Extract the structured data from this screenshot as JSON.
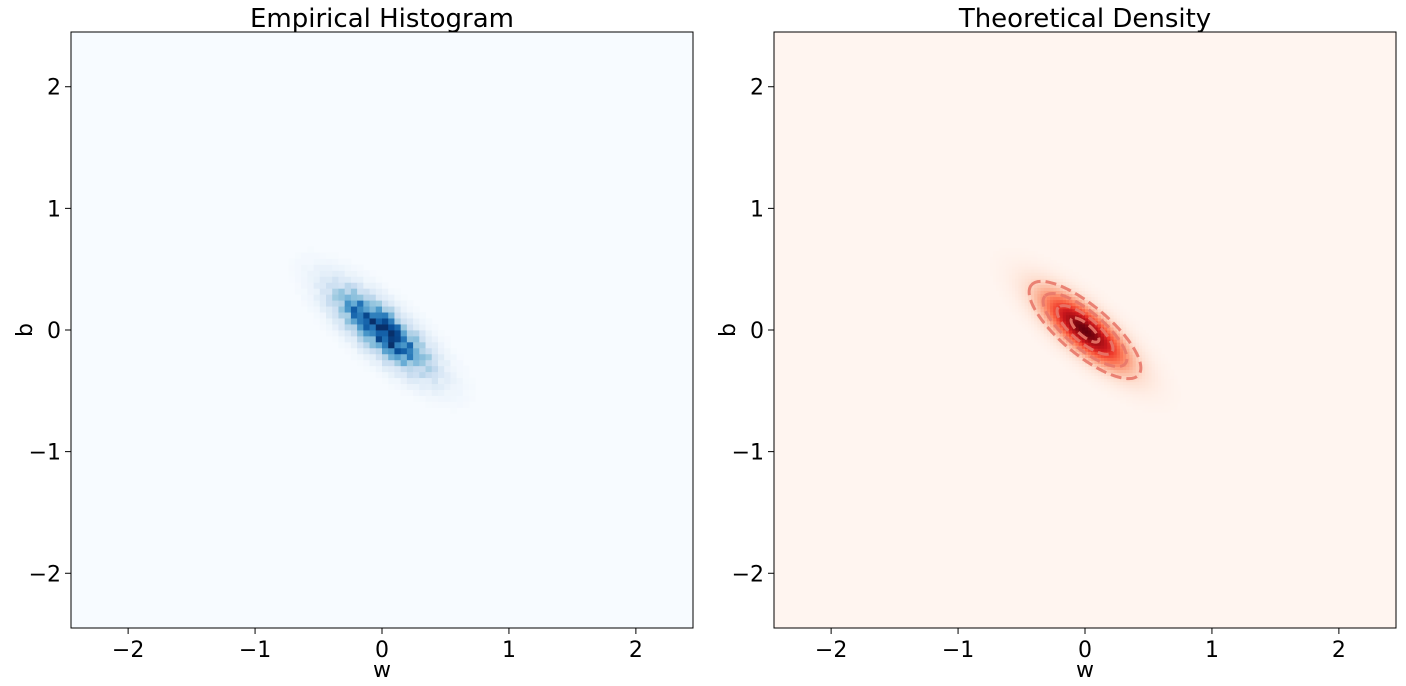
{
  "chart_data": [
    {
      "type": "heatmap",
      "title": "Empirical Histogram",
      "xlabel": "w",
      "ylabel": "b",
      "xlim": [
        -2.45,
        2.45
      ],
      "ylim": [
        -2.45,
        2.45
      ],
      "xticks": [
        -2,
        -1,
        0,
        1,
        2
      ],
      "yticks": [
        -2,
        -1,
        0,
        1,
        2
      ],
      "xtick_labels": [
        "−2",
        "−1",
        "0",
        "1",
        "2"
      ],
      "ytick_labels": [
        "−2",
        "−1",
        "0",
        "1",
        "2"
      ],
      "colormap": "Blues",
      "colors": {
        "low": "#f7fbff",
        "high": "#08306b"
      },
      "distribution": {
        "mean": [
          0.0,
          0.0
        ],
        "std_w": 0.22,
        "std_b": 0.2,
        "correlation": -0.78
      },
      "bin_width": 0.049,
      "grid": false
    },
    {
      "type": "heatmap",
      "title": "Theoretical Density",
      "xlabel": "w",
      "ylabel": "b",
      "xlim": [
        -2.45,
        2.45
      ],
      "ylim": [
        -2.45,
        2.45
      ],
      "xticks": [
        -2,
        -1,
        0,
        1,
        2
      ],
      "yticks": [
        -2,
        -1,
        0,
        1,
        2
      ],
      "xtick_labels": [
        "−2",
        "−1",
        "0",
        "1",
        "2"
      ],
      "ytick_labels": [
        "−2",
        "−1",
        "0",
        "1",
        "2"
      ],
      "colormap": "Reds",
      "colors": {
        "low": "#fff5f0",
        "high": "#67000d",
        "contour": "#e8786a"
      },
      "distribution": {
        "mean": [
          0.0,
          0.0
        ],
        "std_w": 0.22,
        "std_b": 0.2,
        "correlation": -0.78
      },
      "contour_levels_sigma": [
        0.5,
        1.0,
        1.5,
        2.0
      ],
      "contour_style": "dashed",
      "grid": false
    }
  ]
}
